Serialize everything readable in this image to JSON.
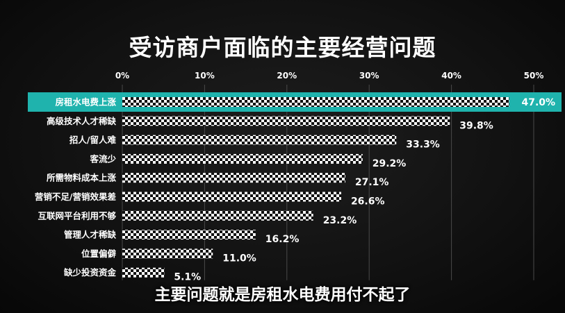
{
  "title": "受访商户面临的主要经营问题",
  "subtitle": "主要问题就是房租水电费用付不起了",
  "colors": {
    "highlight": "#1fb3ad",
    "bar_dark": "#111111",
    "bar_light": "#ffffff",
    "background": "#121212"
  },
  "chart_data": {
    "type": "bar",
    "orientation": "horizontal",
    "title": "受访商户面临的主要经营问题",
    "xlim": [
      0,
      50
    ],
    "x_ticks": [
      "0%",
      "10%",
      "20%",
      "30%",
      "40%",
      "50%"
    ],
    "grid": true,
    "categories": [
      "房租水电费上涨",
      "高级技术人才稀缺",
      "招人/留人难",
      "客流少",
      "所需物料成本上涨",
      "营销不足/营销效果差",
      "互联网平台利用不够",
      "管理人才稀缺",
      "位置偏僻",
      "缺少投资资金"
    ],
    "values": [
      47.0,
      39.8,
      33.3,
      29.2,
      27.1,
      26.6,
      23.2,
      16.2,
      11.0,
      5.1
    ],
    "value_labels": [
      "47.0%",
      "39.8%",
      "33.3%",
      "29.2%",
      "27.1%",
      "26.6%",
      "23.2%",
      "16.2%",
      "11.0%",
      "5.1%"
    ],
    "highlighted_index": 0
  }
}
